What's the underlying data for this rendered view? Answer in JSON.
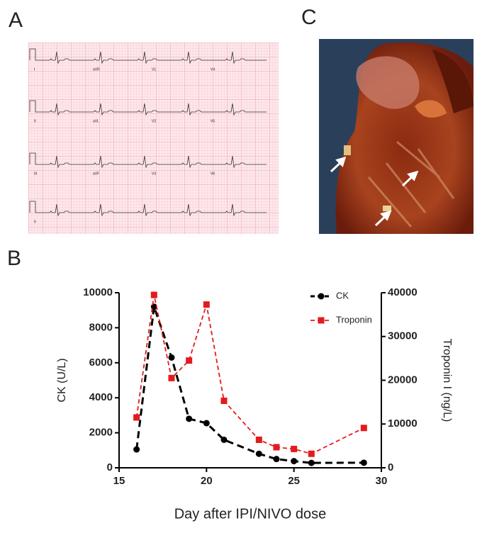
{
  "panel_labels": {
    "a": "A",
    "b": "B",
    "c": "C"
  },
  "ecg": {
    "leads": [
      [
        "I",
        "aVR",
        "V1",
        "V4"
      ],
      [
        "II",
        "aVL",
        "V2",
        "V5"
      ],
      [
        "III",
        "aVF",
        "V3",
        "V6"
      ],
      [
        "II"
      ]
    ]
  },
  "chart_data": {
    "type": "line",
    "xlabel": "Day after IPI/NIVO dose",
    "ylabel": "CK (U/L)",
    "y2label": "Troponin I (ng/L)",
    "x": [
      16,
      17,
      18,
      19,
      20,
      21,
      23,
      24,
      25,
      26,
      29
    ],
    "series": [
      {
        "name": "CK",
        "color": "#000000",
        "marker": "circle",
        "values": [
          1050,
          9200,
          6300,
          2800,
          2550,
          1600,
          800,
          500,
          380,
          280,
          290
        ]
      },
      {
        "name": "Troponin",
        "color": "#e41a1c",
        "marker": "square",
        "axis": "y2",
        "values": [
          11500,
          39500,
          20500,
          24500,
          37300,
          15300,
          6400,
          4700,
          4300,
          3200,
          9100
        ]
      }
    ],
    "xlim": [
      15,
      30
    ],
    "xticks": [
      15,
      20,
      25,
      30
    ],
    "ylim": [
      0,
      10000
    ],
    "yticks": [
      0,
      2000,
      4000,
      6000,
      8000,
      10000
    ],
    "y2lim": [
      0,
      40000
    ],
    "y2ticks": [
      0,
      10000,
      20000,
      30000,
      40000
    ],
    "legend": "upper-right"
  }
}
